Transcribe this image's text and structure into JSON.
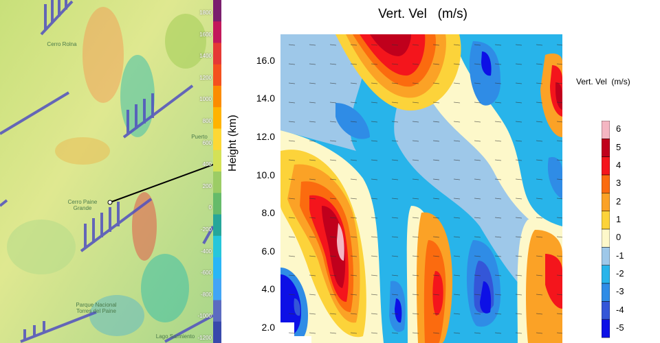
{
  "map_panel": {
    "colorbar": {
      "tick_labels": [
        "1800",
        "1600",
        "1400",
        "1200",
        "1000",
        "800",
        "600",
        "400",
        "200",
        "0",
        "-200",
        "-400",
        "-600",
        "-800",
        "-1000",
        "-1200"
      ],
      "colors": [
        "#7a1f6e",
        "#c2185b",
        "#e53935",
        "#f4511e",
        "#fb8c00",
        "#ffb300",
        "#fdd835",
        "#d4e157",
        "#9ccc65",
        "#66bb6a",
        "#26a69a",
        "#26c6da",
        "#29b6f6",
        "#42a5f5",
        "#5c6bc0",
        "#3949ab"
      ]
    },
    "places": [
      {
        "name": "Cerro Rolna"
      },
      {
        "name": "Puerto"
      },
      {
        "name": "Cerro Paine Grande"
      },
      {
        "name": "Parque Nacional Torres del Paine"
      },
      {
        "name": "Lago Sarmiento"
      }
    ]
  },
  "chart_data": {
    "type": "heatmap",
    "title": "Vert. Vel   (m/s)",
    "ylabel": "Height (km)",
    "xlabel": "",
    "ylim": [
      1.2,
      17.4
    ],
    "yticks": [
      2.0,
      4.0,
      6.0,
      8.0,
      10.0,
      12.0,
      14.0,
      16.0
    ],
    "ytick_labels": [
      "2.0",
      "4.0",
      "6.0",
      "8.0",
      "10.0",
      "12.0",
      "14.0",
      "16.0"
    ],
    "colorbar": {
      "title": "Vert. Vel  (m/s)",
      "levels": [
        "6",
        "5",
        "4",
        "3",
        "2",
        "1",
        "0",
        "-1",
        "-2",
        "-3",
        "-4",
        "-5"
      ],
      "colors": [
        "#f4b6c2",
        "#c0001c",
        "#f4151c",
        "#fb6b0f",
        "#fba226",
        "#fcd33a",
        "#fdf8ca",
        "#9ec8e9",
        "#28b4ea",
        "#2f8ce6",
        "#3456d8",
        "#0d10e6"
      ]
    }
  }
}
